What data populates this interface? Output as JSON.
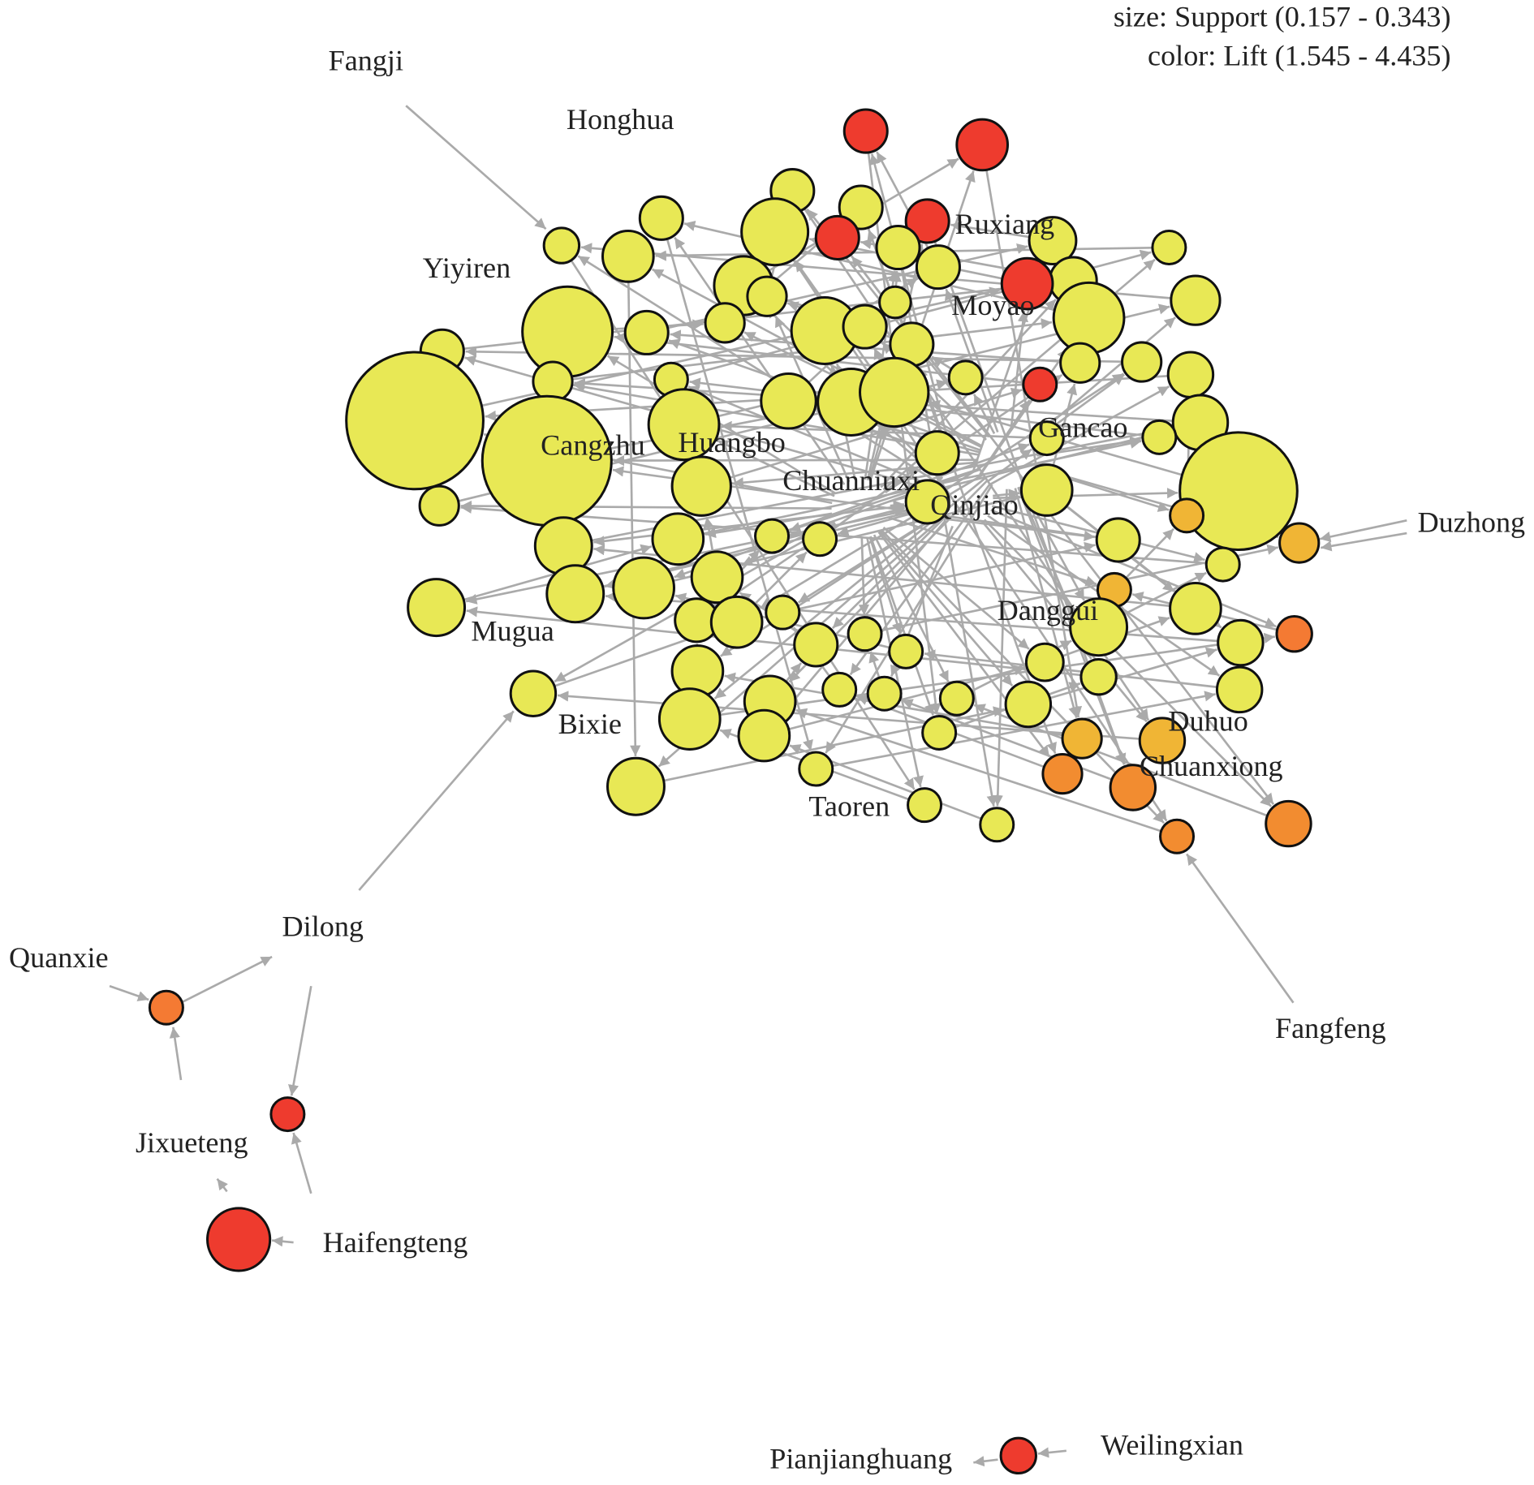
{
  "legend": {
    "size": "size: Support (0.157 - 0.343)",
    "color": "color: Lift (1.545 - 4.435)"
  },
  "nodes": [
    {
      "label": "Fangji"
    },
    {
      "label": "Honghua"
    },
    {
      "label": "Yiyiren"
    },
    {
      "label": "Ruxiang"
    },
    {
      "label": "Moyao"
    },
    {
      "label": "Gancao"
    },
    {
      "label": "Cangzhu"
    },
    {
      "label": "Huangbo"
    },
    {
      "label": "Chuanniuxi"
    },
    {
      "label": "Qinjiao"
    },
    {
      "label": "Duzhong"
    },
    {
      "label": "Danggui"
    },
    {
      "label": "Mugua"
    },
    {
      "label": "Bixie"
    },
    {
      "label": "Duhuo"
    },
    {
      "label": "Chuanxiong"
    },
    {
      "label": "Taoren"
    },
    {
      "label": "Fangfeng"
    },
    {
      "label": "Dilong"
    },
    {
      "label": "Quanxie"
    },
    {
      "label": "Jixueteng"
    },
    {
      "label": "Haifengteng"
    },
    {
      "label": "Pianjianghuang"
    },
    {
      "label": "Weilingxian"
    }
  ]
}
